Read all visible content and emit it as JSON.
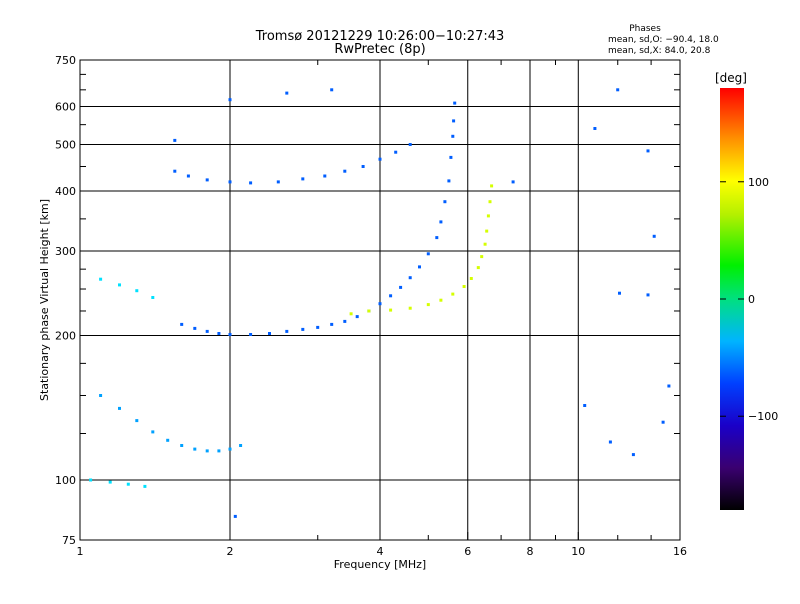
{
  "chart_data": {
    "type": "scatter",
    "title": "Tromsø 20121229 10:26:00−10:27:43",
    "subtitle": "RwPretec (8p)",
    "xlabel": "Frequency [MHz]",
    "ylabel": "Stationary phase Virtual Height [km]",
    "x_scale": "log",
    "y_scale": "log",
    "xlim": [
      1,
      16
    ],
    "ylim": [
      75,
      750
    ],
    "grid": true,
    "x_major_ticks": [
      1,
      2,
      4,
      6,
      8,
      10,
      16
    ],
    "x_major_tick_labels": [
      "1",
      "2",
      "4",
      "6",
      "8",
      "10",
      "16"
    ],
    "x_minor_ticks": [
      3,
      5,
      7,
      9,
      12,
      14
    ],
    "y_major_ticks": [
      75,
      100,
      200,
      300,
      400,
      500,
      600,
      750
    ],
    "y_major_tick_labels": [
      "75",
      "100",
      "200",
      "300",
      "400",
      "500",
      "600",
      "750"
    ],
    "y_minor_ticks": [
      125,
      150,
      175,
      225,
      250,
      275,
      350,
      450,
      550,
      650,
      700
    ],
    "phases": {
      "title": "Phases",
      "line_o": "mean, sd,O: −90.4, 18.0",
      "line_x": "mean, sd,X:  84.0, 20.8"
    },
    "colorbar": {
      "label": "[deg]",
      "min": -180,
      "max": 180,
      "tick_values": [
        100,
        0,
        -100
      ],
      "tick_labels": [
        "100",
        "0",
        "−100"
      ]
    },
    "series": [
      {
        "group": "F-region O-mode trace",
        "color_value_deg": -100,
        "points": [
          [
            1.6,
            211
          ],
          [
            1.7,
            207
          ],
          [
            1.8,
            204
          ],
          [
            1.9,
            202
          ],
          [
            2.0,
            201
          ],
          [
            2.2,
            201
          ],
          [
            2.4,
            202
          ],
          [
            2.6,
            204
          ],
          [
            2.8,
            206
          ],
          [
            3.0,
            208
          ],
          [
            3.2,
            211
          ],
          [
            3.4,
            214
          ],
          [
            3.6,
            219
          ],
          [
            3.8,
            225
          ],
          [
            4.0,
            233
          ],
          [
            4.2,
            242
          ],
          [
            4.4,
            252
          ],
          [
            4.6,
            264
          ],
          [
            4.8,
            278
          ],
          [
            5.0,
            296
          ],
          [
            5.2,
            320
          ],
          [
            5.3,
            345
          ],
          [
            5.4,
            380
          ],
          [
            5.5,
            420
          ],
          [
            5.55,
            470
          ],
          [
            5.6,
            520
          ],
          [
            5.62,
            560
          ],
          [
            5.65,
            610
          ]
        ]
      },
      {
        "group": "F-region X-mode trace",
        "color_value_deg": 90,
        "points": [
          [
            3.5,
            222
          ],
          [
            3.8,
            225
          ],
          [
            4.2,
            226
          ],
          [
            4.6,
            228
          ],
          [
            5.0,
            232
          ],
          [
            5.3,
            237
          ],
          [
            5.6,
            244
          ],
          [
            5.9,
            253
          ],
          [
            6.1,
            263
          ],
          [
            6.3,
            277
          ],
          [
            6.4,
            292
          ],
          [
            6.5,
            310
          ],
          [
            6.55,
            330
          ],
          [
            6.6,
            355
          ],
          [
            6.65,
            380
          ],
          [
            6.7,
            410
          ]
        ]
      },
      {
        "group": "Upper oblique echo band",
        "color_value_deg": -100,
        "points": [
          [
            1.55,
            440
          ],
          [
            1.65,
            430
          ],
          [
            1.8,
            422
          ],
          [
            2.0,
            418
          ],
          [
            2.2,
            416
          ],
          [
            2.5,
            418
          ],
          [
            2.8,
            424
          ],
          [
            3.1,
            430
          ],
          [
            3.4,
            440
          ],
          [
            3.7,
            450
          ],
          [
            4.0,
            466
          ],
          [
            4.3,
            482
          ],
          [
            4.6,
            500
          ]
        ]
      },
      {
        "group": "E-region echoes",
        "color_value_deg": -80,
        "points": [
          [
            1.1,
            150
          ],
          [
            1.2,
            141
          ],
          [
            1.3,
            133
          ],
          [
            1.4,
            126
          ],
          [
            1.5,
            121
          ],
          [
            1.6,
            118
          ],
          [
            1.7,
            116
          ],
          [
            1.8,
            115
          ],
          [
            1.9,
            115
          ],
          [
            2.0,
            116
          ],
          [
            2.1,
            118
          ]
        ]
      },
      {
        "group": "Low-frequency echoes",
        "color_value_deg": -60,
        "points": [
          [
            1.1,
            262
          ],
          [
            1.2,
            255
          ],
          [
            1.3,
            248
          ],
          [
            1.4,
            240
          ],
          [
            1.05,
            100
          ],
          [
            1.15,
            99
          ],
          [
            1.25,
            98
          ],
          [
            1.35,
            97
          ]
        ]
      },
      {
        "group": "Isolated points",
        "color_value_deg": -100,
        "points": [
          [
            1.55,
            510
          ],
          [
            2.0,
            620
          ],
          [
            2.6,
            640
          ],
          [
            3.2,
            650
          ],
          [
            7.4,
            418
          ],
          [
            12.0,
            650
          ],
          [
            13.8,
            485
          ],
          [
            14.2,
            322
          ],
          [
            12.1,
            245
          ],
          [
            13.8,
            243
          ],
          [
            15.2,
            157
          ],
          [
            14.8,
            132
          ],
          [
            10.8,
            540
          ],
          [
            11.6,
            120
          ],
          [
            12.9,
            113
          ],
          [
            10.3,
            143
          ],
          [
            2.05,
            84
          ]
        ]
      }
    ]
  }
}
